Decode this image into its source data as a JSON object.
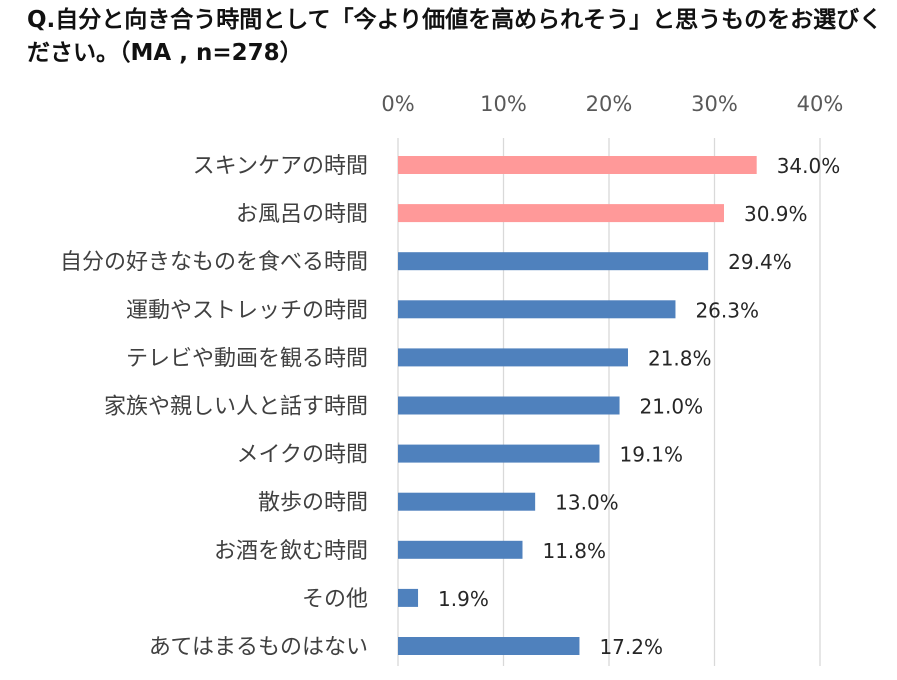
{
  "chart_data": {
    "type": "bar",
    "orientation": "horizontal",
    "title": "Q.自分と向き合う時間として「今より価値を高められそう」と思うものをお選びください。（MA , n=278）",
    "categories": [
      "スキンケアの時間",
      "お風呂の時間",
      "自分の好きなものを食べる時間",
      "運動やストレッチの時間",
      "テレビや動画を観る時間",
      "家族や親しい人と話す時間",
      "メイクの時間",
      "散歩の時間",
      "お酒を飲む時間",
      "その他",
      "あてはまるものはない"
    ],
    "values": [
      34.0,
      30.9,
      29.4,
      26.3,
      21.8,
      21.0,
      19.1,
      13.0,
      11.8,
      1.9,
      17.2
    ],
    "value_labels": [
      "34.0%",
      "30.9%",
      "29.4%",
      "26.3%",
      "21.8%",
      "21.0%",
      "19.1%",
      "13.0%",
      "11.8%",
      "1.9%",
      "17.2%"
    ],
    "highlight": [
      true,
      true,
      false,
      false,
      false,
      false,
      false,
      false,
      false,
      false,
      false
    ],
    "xaxis": {
      "ticks": [
        0,
        10,
        20,
        30,
        40
      ],
      "tick_labels": [
        "0%",
        "10%",
        "20%",
        "30%",
        "40%"
      ],
      "range": [
        0,
        40
      ],
      "position": "top"
    },
    "gridlines": true,
    "legend": "none",
    "colors": {
      "highlight": "#FF9999",
      "default": "#4F81BD",
      "grid": "#D9D9D9"
    }
  }
}
